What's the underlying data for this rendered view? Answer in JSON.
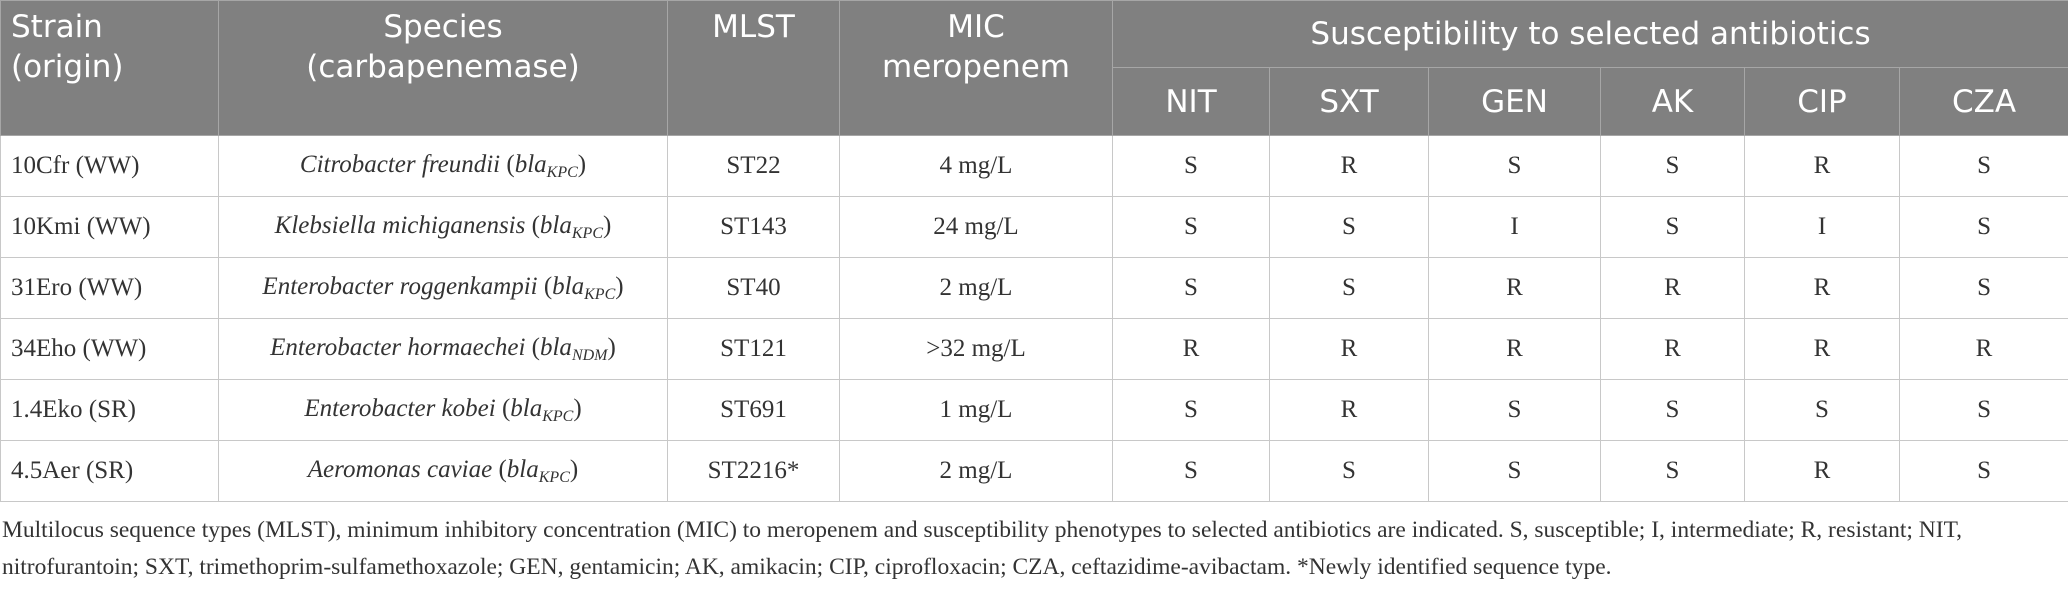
{
  "table": {
    "header": {
      "columns": [
        [
          "Strain",
          "(origin)"
        ],
        [
          "Species",
          "(carbapenemase)"
        ],
        [
          "MLST"
        ],
        [
          "MIC",
          "meropenem"
        ]
      ],
      "group": "Susceptibility to selected antibiotics",
      "antibiotics": [
        "NIT",
        "SXT",
        "GEN",
        "AK",
        "CIP",
        "CZA"
      ]
    },
    "rows": [
      {
        "strain": "10Cfr (WW)",
        "species": [
          "Citrobacter freundii",
          " (",
          "bla",
          "KPC",
          ")"
        ],
        "mlst": "ST22",
        "mic": "4 mg/L",
        "susceptibility": [
          "S",
          "R",
          "S",
          "S",
          "R",
          "S"
        ]
      },
      {
        "strain": "10Kmi (WW)",
        "species": [
          "Klebsiella michiganensis",
          " (",
          "bla",
          "KPC",
          ")"
        ],
        "mlst": "ST143",
        "mic": "24 mg/L",
        "susceptibility": [
          "S",
          "S",
          "I",
          "S",
          "I",
          "S"
        ]
      },
      {
        "strain": "31Ero (WW)",
        "species": [
          "Enterobacter roggenkampii",
          " (",
          "bla",
          "KPC",
          ")"
        ],
        "mlst": "ST40",
        "mic": "2 mg/L",
        "susceptibility": [
          "S",
          "S",
          "R",
          "R",
          "R",
          "S"
        ]
      },
      {
        "strain": "34Eho (WW)",
        "species": [
          "Enterobacter hormaechei",
          " (",
          "bla",
          "NDM",
          ")"
        ],
        "mlst": "ST121",
        "mic": ">32 mg/L",
        "susceptibility": [
          "R",
          "R",
          "R",
          "R",
          "R",
          "R"
        ]
      },
      {
        "strain": "1.4Eko (SR)",
        "species": [
          "Enterobacter kobei",
          " (",
          "bla",
          "KPC",
          ")"
        ],
        "mlst": "ST691",
        "mic": "1 mg/L",
        "susceptibility": [
          "S",
          "R",
          "S",
          "S",
          "S",
          "S"
        ]
      },
      {
        "strain": "4.5Aer (SR)",
        "species": [
          "Aeromonas caviae",
          " (",
          "bla",
          "KPC",
          ")"
        ],
        "mlst": "ST2216*",
        "mic": "2 mg/L",
        "susceptibility": [
          "S",
          "S",
          "S",
          "S",
          "R",
          "S"
        ]
      }
    ],
    "footnote": "Multilocus sequence types (MLST), minimum inhibitory concentration (MIC) to meropenem and susceptibility phenotypes to selected antibiotics are indicated. S, susceptible; I, intermediate; R, resistant; NIT, nitrofurantoin; SXT, trimethoprim-sulfamethoxazole; GEN, gentamicin; AK, amikacin; CIP, ciprofloxacin; CZA, ceftazidime-avibactam. *Newly identified sequence type."
  }
}
